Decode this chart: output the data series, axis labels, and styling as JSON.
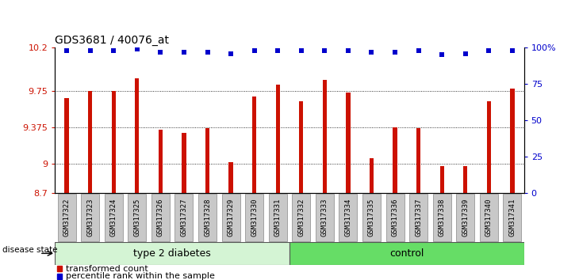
{
  "title": "GDS3681 / 40076_at",
  "samples": [
    "GSM317322",
    "GSM317323",
    "GSM317324",
    "GSM317325",
    "GSM317326",
    "GSM317327",
    "GSM317328",
    "GSM317329",
    "GSM317330",
    "GSM317331",
    "GSM317332",
    "GSM317333",
    "GSM317334",
    "GSM317335",
    "GSM317336",
    "GSM317337",
    "GSM317338",
    "GSM317339",
    "GSM317340",
    "GSM317341"
  ],
  "bar_values": [
    9.68,
    9.75,
    9.75,
    9.88,
    9.35,
    9.32,
    9.37,
    9.02,
    9.7,
    9.82,
    9.65,
    9.87,
    9.74,
    9.06,
    9.38,
    9.37,
    8.98,
    8.98,
    9.65,
    9.78
  ],
  "percentile_values": [
    98,
    98,
    98,
    99,
    97,
    97,
    97,
    96,
    98,
    98,
    98,
    98,
    98,
    97,
    97,
    98,
    95,
    96,
    98,
    98
  ],
  "bar_color": "#cc1100",
  "percentile_color": "#0000cc",
  "ylim_left": [
    8.7,
    10.2
  ],
  "ylim_right": [
    0,
    100
  ],
  "yticks_left": [
    8.7,
    9.0,
    9.375,
    9.75,
    10.2
  ],
  "ytick_labels_left": [
    "8.7",
    "9",
    "9.375",
    "9.75",
    "10.2"
  ],
  "yticks_right": [
    0,
    25,
    50,
    75,
    100
  ],
  "ytick_labels_right": [
    "0",
    "25",
    "50",
    "75",
    "100%"
  ],
  "grid_lines": [
    9.0,
    9.375,
    9.75
  ],
  "group1_label": "type 2 diabetes",
  "group2_label": "control",
  "group1_count": 10,
  "group2_count": 10,
  "disease_state_label": "disease state",
  "legend_bar_label": "transformed count",
  "legend_dot_label": "percentile rank within the sample",
  "bg_xticklabels": "#c8c8c8",
  "bg_group1": "#d4f4d4",
  "bg_group2": "#66dd66",
  "bar_bottom": 8.7
}
